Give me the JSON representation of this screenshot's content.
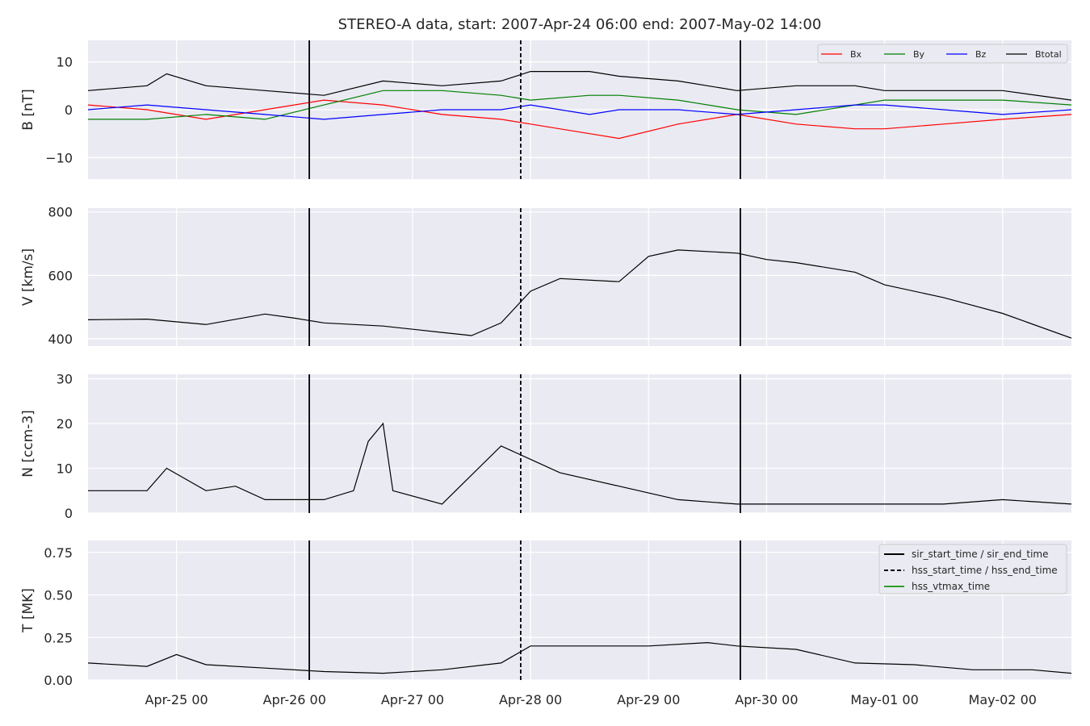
{
  "chart_data": {
    "type": "line",
    "title": "STEREO-A data, start: 2007-Apr-24 06:00  end: 2007-May-02 14:00",
    "x_range": [
      "2007-04-24T06:00",
      "2007-05-02T14:00"
    ],
    "x_ticks": [
      {
        "t": "2007-04-25T00:00",
        "label": "Apr-25 00"
      },
      {
        "t": "2007-04-26T00:00",
        "label": "Apr-26 00"
      },
      {
        "t": "2007-04-27T00:00",
        "label": "Apr-27 00"
      },
      {
        "t": "2007-04-28T00:00",
        "label": "Apr-28 00"
      },
      {
        "t": "2007-04-29T00:00",
        "label": "Apr-29 00"
      },
      {
        "t": "2007-04-30T00:00",
        "label": "Apr-30 00"
      },
      {
        "t": "2007-05-01T00:00",
        "label": "May-01 00"
      },
      {
        "t": "2007-05-02T00:00",
        "label": "May-02 00"
      }
    ],
    "grid": true,
    "event_lines": [
      {
        "t": "2007-04-26T03:00",
        "style": "solid"
      },
      {
        "t": "2007-04-27T22:00",
        "style": "dashed"
      },
      {
        "t": "2007-04-29T18:40",
        "style": "solid"
      }
    ],
    "colors": {
      "Bx": "#ff0000",
      "By": "#008000",
      "Bz": "#0000ff",
      "Btotal": "#000000",
      "hss_vtmax": "#2ca02c",
      "panel_bg": "#eaeaf2"
    },
    "panels": [
      {
        "ylabel": "B [nT]",
        "ylim": [
          -14.5,
          14.5
        ],
        "yticks": [
          {
            "v": -10,
            "label": "−10"
          },
          {
            "v": 0,
            "label": "0"
          },
          {
            "v": 10,
            "label": "10"
          }
        ],
        "legend": {
          "placement": "top-right",
          "entries": [
            "Bx",
            "By",
            "Bz",
            "Btotal"
          ]
        },
        "series": [
          {
            "name": "Bx",
            "color": "#ff0000",
            "points": [
              [
                "2007-04-24T06:00",
                1
              ],
              [
                "2007-04-24T18:00",
                0
              ],
              [
                "2007-04-25T06:00",
                -2
              ],
              [
                "2007-04-25T18:00",
                0
              ],
              [
                "2007-04-26T06:00",
                2
              ],
              [
                "2007-04-26T18:00",
                1
              ],
              [
                "2007-04-27T06:00",
                -1
              ],
              [
                "2007-04-27T18:00",
                -2
              ],
              [
                "2007-04-28T00:00",
                -3
              ],
              [
                "2007-04-28T12:00",
                -5
              ],
              [
                "2007-04-28T18:00",
                -6
              ],
              [
                "2007-04-29T06:00",
                -3
              ],
              [
                "2007-04-29T18:00",
                -1
              ],
              [
                "2007-04-30T06:00",
                -3
              ],
              [
                "2007-04-30T18:00",
                -4
              ],
              [
                "2007-05-01T00:00",
                -4
              ],
              [
                "2007-05-01T12:00",
                -3
              ],
              [
                "2007-05-02T00:00",
                -2
              ],
              [
                "2007-05-02T14:00",
                -1
              ]
            ]
          },
          {
            "name": "By",
            "color": "#008000",
            "points": [
              [
                "2007-04-24T06:00",
                -2
              ],
              [
                "2007-04-24T18:00",
                -2
              ],
              [
                "2007-04-25T06:00",
                -1
              ],
              [
                "2007-04-25T18:00",
                -2
              ],
              [
                "2007-04-26T06:00",
                1
              ],
              [
                "2007-04-26T18:00",
                4
              ],
              [
                "2007-04-27T06:00",
                4
              ],
              [
                "2007-04-27T18:00",
                3
              ],
              [
                "2007-04-28T00:00",
                2
              ],
              [
                "2007-04-28T12:00",
                3
              ],
              [
                "2007-04-28T18:00",
                3
              ],
              [
                "2007-04-29T06:00",
                2
              ],
              [
                "2007-04-29T18:00",
                0
              ],
              [
                "2007-04-30T06:00",
                -1
              ],
              [
                "2007-04-30T18:00",
                1
              ],
              [
                "2007-05-01T00:00",
                2
              ],
              [
                "2007-05-01T12:00",
                2
              ],
              [
                "2007-05-02T00:00",
                2
              ],
              [
                "2007-05-02T14:00",
                1
              ]
            ]
          },
          {
            "name": "Bz",
            "color": "#0000ff",
            "points": [
              [
                "2007-04-24T06:00",
                0
              ],
              [
                "2007-04-24T18:00",
                1
              ],
              [
                "2007-04-25T06:00",
                0
              ],
              [
                "2007-04-25T18:00",
                -1
              ],
              [
                "2007-04-26T06:00",
                -2
              ],
              [
                "2007-04-26T18:00",
                -1
              ],
              [
                "2007-04-27T06:00",
                0
              ],
              [
                "2007-04-27T18:00",
                0
              ],
              [
                "2007-04-28T00:00",
                1
              ],
              [
                "2007-04-28T12:00",
                -1
              ],
              [
                "2007-04-28T18:00",
                0
              ],
              [
                "2007-04-29T06:00",
                0
              ],
              [
                "2007-04-29T18:00",
                -1
              ],
              [
                "2007-04-30T06:00",
                0
              ],
              [
                "2007-04-30T18:00",
                1
              ],
              [
                "2007-05-01T00:00",
                1
              ],
              [
                "2007-05-01T12:00",
                0
              ],
              [
                "2007-05-02T00:00",
                -1
              ],
              [
                "2007-05-02T14:00",
                0
              ]
            ]
          },
          {
            "name": "Btotal",
            "color": "#000000",
            "points": [
              [
                "2007-04-24T06:00",
                4
              ],
              [
                "2007-04-24T18:00",
                5
              ],
              [
                "2007-04-24T22:00",
                7.5
              ],
              [
                "2007-04-25T06:00",
                5
              ],
              [
                "2007-04-25T18:00",
                4
              ],
              [
                "2007-04-26T06:00",
                3
              ],
              [
                "2007-04-26T18:00",
                6
              ],
              [
                "2007-04-27T06:00",
                5
              ],
              [
                "2007-04-27T18:00",
                6
              ],
              [
                "2007-04-28T00:00",
                8
              ],
              [
                "2007-04-28T12:00",
                8
              ],
              [
                "2007-04-28T18:00",
                7
              ],
              [
                "2007-04-29T06:00",
                6
              ],
              [
                "2007-04-29T18:00",
                4
              ],
              [
                "2007-04-30T06:00",
                5
              ],
              [
                "2007-04-30T18:00",
                5
              ],
              [
                "2007-05-01T00:00",
                4
              ],
              [
                "2007-05-01T12:00",
                4
              ],
              [
                "2007-05-02T00:00",
                4
              ],
              [
                "2007-05-02T14:00",
                2
              ]
            ]
          }
        ]
      },
      {
        "ylabel": "V [km/s]",
        "ylim": [
          377,
          812
        ],
        "yticks": [
          {
            "v": 400,
            "label": "400"
          },
          {
            "v": 600,
            "label": "600"
          },
          {
            "v": 800,
            "label": "800"
          }
        ],
        "series": [
          {
            "name": "",
            "color": "#000000",
            "points": [
              [
                "2007-04-24T06:00",
                460
              ],
              [
                "2007-04-24T18:00",
                462
              ],
              [
                "2007-04-25T06:00",
                445
              ],
              [
                "2007-04-25T18:00",
                478
              ],
              [
                "2007-04-26T00:00",
                465
              ],
              [
                "2007-04-26T06:00",
                450
              ],
              [
                "2007-04-26T18:00",
                440
              ],
              [
                "2007-04-27T06:00",
                420
              ],
              [
                "2007-04-27T12:00",
                410
              ],
              [
                "2007-04-27T18:00",
                450
              ],
              [
                "2007-04-28T00:00",
                550
              ],
              [
                "2007-04-28T06:00",
                590
              ],
              [
                "2007-04-28T18:00",
                580
              ],
              [
                "2007-04-29T00:00",
                660
              ],
              [
                "2007-04-29T06:00",
                680
              ],
              [
                "2007-04-29T18:00",
                670
              ],
              [
                "2007-04-30T00:00",
                650
              ],
              [
                "2007-04-30T06:00",
                640
              ],
              [
                "2007-04-30T18:00",
                610
              ],
              [
                "2007-05-01T00:00",
                570
              ],
              [
                "2007-05-01T12:00",
                530
              ],
              [
                "2007-05-02T00:00",
                480
              ],
              [
                "2007-05-02T14:00",
                402
              ]
            ]
          }
        ]
      },
      {
        "ylabel": "N [ccm-3]",
        "ylim": [
          0,
          31
        ],
        "yticks": [
          {
            "v": 0,
            "label": "0"
          },
          {
            "v": 10,
            "label": "10"
          },
          {
            "v": 20,
            "label": "20"
          },
          {
            "v": 30,
            "label": "30"
          }
        ],
        "series": [
          {
            "name": "",
            "color": "#000000",
            "points": [
              [
                "2007-04-24T06:00",
                5
              ],
              [
                "2007-04-24T18:00",
                5
              ],
              [
                "2007-04-24T22:00",
                10
              ],
              [
                "2007-04-25T06:00",
                5
              ],
              [
                "2007-04-25T12:00",
                6
              ],
              [
                "2007-04-25T18:00",
                3
              ],
              [
                "2007-04-26T06:00",
                3
              ],
              [
                "2007-04-26T12:00",
                5
              ],
              [
                "2007-04-26T15:00",
                16
              ],
              [
                "2007-04-26T18:00",
                20
              ],
              [
                "2007-04-26T20:00",
                5
              ],
              [
                "2007-04-27T06:00",
                2
              ],
              [
                "2007-04-27T18:00",
                15
              ],
              [
                "2007-04-28T00:00",
                12
              ],
              [
                "2007-04-28T06:00",
                9
              ],
              [
                "2007-04-28T18:00",
                6
              ],
              [
                "2007-04-29T06:00",
                3
              ],
              [
                "2007-04-29T18:00",
                2
              ],
              [
                "2007-04-30T06:00",
                2
              ],
              [
                "2007-05-01T00:00",
                2
              ],
              [
                "2007-05-01T12:00",
                2
              ],
              [
                "2007-05-02T00:00",
                3
              ],
              [
                "2007-05-02T14:00",
                2
              ]
            ]
          }
        ]
      },
      {
        "ylabel": "T [MK]",
        "ylim": [
          0,
          0.82
        ],
        "yticks": [
          {
            "v": 0,
            "label": "0.00"
          },
          {
            "v": 0.25,
            "label": "0.25"
          },
          {
            "v": 0.5,
            "label": "0.50"
          },
          {
            "v": 0.75,
            "label": "0.75"
          }
        ],
        "legend": {
          "placement": "top-right",
          "entries": [
            "sir_start_time / sir_end_time",
            "hss_start_time / hss_end_time",
            "hss_vtmax_time"
          ]
        },
        "series": [
          {
            "name": "",
            "color": "#000000",
            "points": [
              [
                "2007-04-24T06:00",
                0.1
              ],
              [
                "2007-04-24T18:00",
                0.08
              ],
              [
                "2007-04-25T00:00",
                0.15
              ],
              [
                "2007-04-25T06:00",
                0.09
              ],
              [
                "2007-04-25T18:00",
                0.07
              ],
              [
                "2007-04-26T06:00",
                0.05
              ],
              [
                "2007-04-26T18:00",
                0.04
              ],
              [
                "2007-04-27T06:00",
                0.06
              ],
              [
                "2007-04-27T18:00",
                0.1
              ],
              [
                "2007-04-28T00:00",
                0.2
              ],
              [
                "2007-04-28T12:00",
                0.2
              ],
              [
                "2007-04-29T00:00",
                0.2
              ],
              [
                "2007-04-29T12:00",
                0.22
              ],
              [
                "2007-04-29T18:00",
                0.2
              ],
              [
                "2007-04-30T06:00",
                0.18
              ],
              [
                "2007-04-30T18:00",
                0.1
              ],
              [
                "2007-05-01T06:00",
                0.09
              ],
              [
                "2007-05-01T18:00",
                0.06
              ],
              [
                "2007-05-02T06:00",
                0.06
              ],
              [
                "2007-05-02T14:00",
                0.04
              ]
            ]
          }
        ]
      }
    ]
  }
}
